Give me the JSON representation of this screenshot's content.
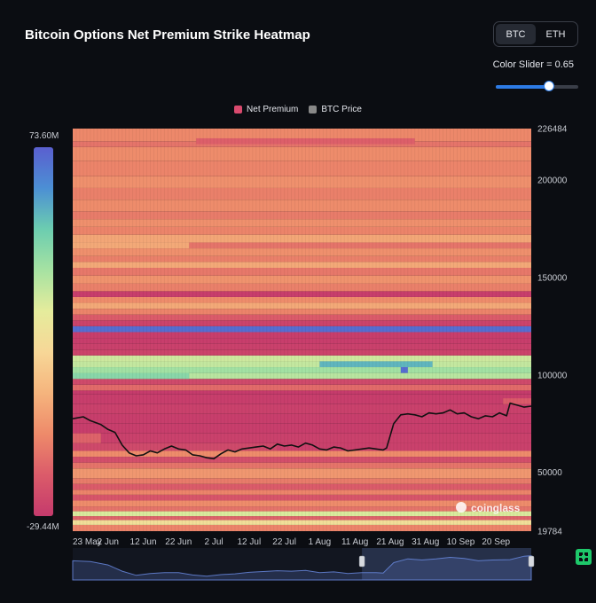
{
  "header": {
    "title": "Bitcoin Options Net Premium Strike Heatmap",
    "coins": [
      "BTC",
      "ETH"
    ],
    "active_coin": "BTC",
    "slider_label": "Color Slider = 0.65",
    "slider_value": 0.65
  },
  "colorbar": {
    "max_label": "73.60M",
    "min_label": "-29.44M",
    "colors": [
      "#5a5fcf",
      "#4c8fd4",
      "#6ccdb0",
      "#a6e2a2",
      "#e5ec9c",
      "#f7d797",
      "#f5b47d",
      "#ee8a6a",
      "#db5b6a",
      "#c53a6c"
    ]
  },
  "watermark": "coinglass",
  "chart_data": {
    "type": "heatmap",
    "title": "Bitcoin Options Net Premium Strike Heatmap",
    "legend": [
      {
        "name": "Net Premium",
        "color": "#d94a6e"
      },
      {
        "name": "BTC Price",
        "color": "#888888"
      }
    ],
    "legend_position": "top-center",
    "x_tick_labels": [
      "23 May",
      "2 Jun",
      "12 Jun",
      "22 Jun",
      "2 Jul",
      "12 Jul",
      "22 Jul",
      "1 Aug",
      "11 Aug",
      "21 Aug",
      "31 Aug",
      "10 Sep",
      "20 Sep"
    ],
    "y_tick_values": [
      226484,
      200000,
      150000,
      100000,
      50000,
      19784
    ],
    "y_tick_labels": [
      "226484",
      "200000",
      "150000",
      "100000",
      "50000",
      "19784"
    ],
    "ylim": [
      19784,
      226484
    ],
    "x_range_days": [
      0,
      130
    ],
    "grid": false,
    "bands": [
      {
        "lo": 19784,
        "hi": 23000,
        "value": -8
      },
      {
        "lo": 23000,
        "hi": 25500,
        "value": 20
      },
      {
        "lo": 25500,
        "hi": 27500,
        "value": -16
      },
      {
        "lo": 27500,
        "hi": 30000,
        "value": 30
      },
      {
        "lo": 30000,
        "hi": 32500,
        "value": -12
      },
      {
        "lo": 32500,
        "hi": 35500,
        "value": -6
      },
      {
        "lo": 35500,
        "hi": 38500,
        "value": -20
      },
      {
        "lo": 38500,
        "hi": 41000,
        "value": -8
      },
      {
        "lo": 41000,
        "hi": 44000,
        "value": -18
      },
      {
        "lo": 44000,
        "hi": 47000,
        "value": -10
      },
      {
        "lo": 47000,
        "hi": 52000,
        "value": -3
      },
      {
        "lo": 52000,
        "hi": 55000,
        "value": -12
      },
      {
        "lo": 55000,
        "hi": 58000,
        "value": -22
      },
      {
        "lo": 58000,
        "hi": 61000,
        "value": -6
      },
      {
        "lo": 61000,
        "hi": 65000,
        "value": -24
      },
      {
        "lo": 65000,
        "hi": 70000,
        "value": -27
      },
      {
        "lo": 70000,
        "hi": 75000,
        "value": -28
      },
      {
        "lo": 75000,
        "hi": 80000,
        "value": -28
      },
      {
        "lo": 80000,
        "hi": 85000,
        "value": -27
      },
      {
        "lo": 85000,
        "hi": 90000,
        "value": -28
      },
      {
        "lo": 90000,
        "hi": 92000,
        "value": -29
      },
      {
        "lo": 92000,
        "hi": 95000,
        "value": -14
      },
      {
        "lo": 95000,
        "hi": 98000,
        "value": -24
      },
      {
        "lo": 98000,
        "hi": 101000,
        "value": 36
      },
      {
        "lo": 101000,
        "hi": 104000,
        "value": 40
      },
      {
        "lo": 104000,
        "hi": 107000,
        "value": 34
      },
      {
        "lo": 107000,
        "hi": 110000,
        "value": 32
      },
      {
        "lo": 110000,
        "hi": 113000,
        "value": -26
      },
      {
        "lo": 113000,
        "hi": 116000,
        "value": -27
      },
      {
        "lo": 116000,
        "hi": 119000,
        "value": -28
      },
      {
        "lo": 119000,
        "hi": 122000,
        "value": -28
      },
      {
        "lo": 122000,
        "hi": 125000,
        "value": 70
      },
      {
        "lo": 125000,
        "hi": 128000,
        "value": -26
      },
      {
        "lo": 128000,
        "hi": 131000,
        "value": -18
      },
      {
        "lo": 131000,
        "hi": 134000,
        "value": -8
      },
      {
        "lo": 134000,
        "hi": 137000,
        "value": 2
      },
      {
        "lo": 137000,
        "hi": 140000,
        "value": -6
      },
      {
        "lo": 140000,
        "hi": 143000,
        "value": -28
      },
      {
        "lo": 143000,
        "hi": 147000,
        "value": -9
      },
      {
        "lo": 147000,
        "hi": 151000,
        "value": -4
      },
      {
        "lo": 151000,
        "hi": 155000,
        "value": -11
      },
      {
        "lo": 155000,
        "hi": 158000,
        "value": 2
      },
      {
        "lo": 158000,
        "hi": 161000,
        "value": -9
      },
      {
        "lo": 161000,
        "hi": 165000,
        "value": -5
      },
      {
        "lo": 165000,
        "hi": 168000,
        "value": -12
      },
      {
        "lo": 168000,
        "hi": 172000,
        "value": 1
      },
      {
        "lo": 172000,
        "hi": 176000,
        "value": -8
      },
      {
        "lo": 176000,
        "hi": 180000,
        "value": -5
      },
      {
        "lo": 180000,
        "hi": 184000,
        "value": -10
      },
      {
        "lo": 184000,
        "hi": 190000,
        "value": -6
      },
      {
        "lo": 190000,
        "hi": 196000,
        "value": -9
      },
      {
        "lo": 196000,
        "hi": 202000,
        "value": -5
      },
      {
        "lo": 202000,
        "hi": 210000,
        "value": -8
      },
      {
        "lo": 210000,
        "hi": 217000,
        "value": -6
      },
      {
        "lo": 217000,
        "hi": 220000,
        "value": -12
      },
      {
        "lo": 220000,
        "hi": 226484,
        "value": -7
      }
    ],
    "patches": [
      {
        "lo": 218500,
        "hi": 221500,
        "x0": 35,
        "x1": 97,
        "value": -17
      },
      {
        "lo": 104000,
        "hi": 107000,
        "x0": 70,
        "x1": 102,
        "value": 55
      },
      {
        "lo": 101000,
        "hi": 104000,
        "x0": 93,
        "x1": 95,
        "value": 70
      },
      {
        "lo": 98000,
        "hi": 101000,
        "x0": 0,
        "x1": 33,
        "value": 45
      },
      {
        "lo": 65000,
        "hi": 70000,
        "x0": 0,
        "x1": 8,
        "value": -16
      },
      {
        "lo": 85000,
        "hi": 88000,
        "x0": 122,
        "x1": 130,
        "value": -18
      },
      {
        "lo": 61000,
        "hi": 65000,
        "x0": 58,
        "x1": 130,
        "value": -27
      },
      {
        "lo": 165000,
        "hi": 168000,
        "x0": 0,
        "x1": 33,
        "value": 2
      }
    ],
    "btc_price": {
      "name": "BTC Price",
      "x": [
        0,
        3,
        5,
        8,
        10,
        12,
        14,
        16,
        18,
        20,
        22,
        24,
        26,
        28,
        30,
        32,
        34,
        36,
        38,
        40,
        42,
        44,
        46,
        48,
        50,
        52,
        54,
        56,
        58,
        60,
        62,
        64,
        66,
        68,
        70,
        72,
        74,
        76,
        78,
        80,
        82,
        84,
        86,
        88,
        89,
        91,
        93,
        95,
        97,
        99,
        101,
        103,
        105,
        107,
        109,
        111,
        113,
        115,
        117,
        119,
        121,
        123,
        124,
        126,
        128,
        130
      ],
      "y": [
        77500,
        78500,
        76500,
        74500,
        72000,
        70500,
        64000,
        60000,
        58500,
        59000,
        61000,
        60000,
        62000,
        63500,
        62000,
        61500,
        59000,
        58500,
        57500,
        57000,
        59500,
        61500,
        60500,
        62000,
        62500,
        63000,
        63500,
        62000,
        64500,
        63500,
        64000,
        63000,
        65000,
        64000,
        62000,
        61500,
        63000,
        62500,
        61000,
        61500,
        62000,
        62500,
        62000,
        61500,
        62500,
        75000,
        79500,
        80000,
        79500,
        78500,
        80500,
        80000,
        80500,
        82000,
        80000,
        80500,
        78500,
        77500,
        79000,
        78500,
        80500,
        79000,
        85500,
        84500,
        83500,
        84000
      ]
    },
    "navigator": {
      "x": [
        0,
        5,
        10,
        14,
        18,
        22,
        26,
        30,
        34,
        38,
        42,
        46,
        50,
        54,
        58,
        62,
        66,
        70,
        74,
        78,
        82,
        86,
        88,
        91,
        95,
        99,
        103,
        107,
        111,
        115,
        119,
        124,
        128,
        130
      ],
      "y": [
        77500,
        76500,
        72000,
        64000,
        58500,
        61000,
        62000,
        62000,
        59000,
        57500,
        59500,
        60500,
        62500,
        63500,
        64500,
        64000,
        65000,
        62000,
        63000,
        61000,
        62000,
        62000,
        61500,
        75000,
        80000,
        78500,
        80000,
        82000,
        80500,
        77500,
        78500,
        79000,
        83500,
        84000
      ],
      "selection": [
        82,
        130
      ]
    }
  }
}
